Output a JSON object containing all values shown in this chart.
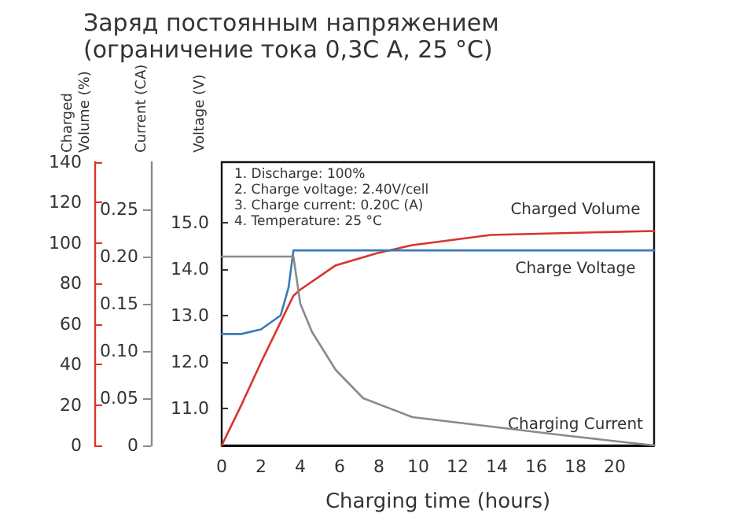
{
  "chart_data": {
    "type": "line",
    "title": "Заряд постоянным напряжением",
    "subtitle": "(ограничение тока 0,3C A, 25 °C)",
    "xlabel": "Charging time (hours)",
    "ylabel": "Voltage (V)",
    "y2label": "Current (CA)",
    "y3label": "Charged Volume (%)",
    "annotations": [
      "1. Discharge: 100%",
      "2. Charge voltage: 2.40V/cell",
      "3. Charge current: 0.20C (A)",
      "4. Temperature: 25 °C"
    ],
    "xlim": [
      0,
      22
    ],
    "xticks": [
      0,
      2,
      4,
      6,
      8,
      10,
      12,
      14,
      16,
      18,
      20
    ],
    "ylim": [
      10.2,
      16.3
    ],
    "yticks": [
      {
        "value": 11,
        "label": "11.0"
      },
      {
        "value": 12,
        "label": "12.0"
      },
      {
        "value": 13,
        "label": "13.0"
      },
      {
        "value": 14,
        "label": "14.0"
      },
      {
        "value": 15,
        "label": "15.0"
      }
    ],
    "y2lim": [
      0,
      0.3
    ],
    "y2ticks": [
      0,
      0.05,
      {
        "value": 0.1,
        "label": "0.10"
      },
      0.15,
      {
        "value": 0.2,
        "label": "0.20"
      },
      0.25
    ],
    "y3lim": [
      0,
      140
    ],
    "y3ticks": [
      0,
      20,
      40,
      60,
      80,
      100,
      120,
      140
    ],
    "grid": false,
    "legend": false,
    "marker": "none",
    "line_style": "solid",
    "series": [
      {
        "name": "Charged Volume",
        "color": "#d8342c",
        "axis": "y3",
        "x": [
          0,
          1,
          2,
          3,
          3.65,
          4,
          5.8,
          7.9,
          9.7,
          13.7,
          17.7,
          22
        ],
        "values": [
          0,
          20,
          41,
          61,
          74,
          77,
          89,
          95,
          99,
          104,
          105,
          106
        ]
      },
      {
        "name": "Charge Voltage",
        "color": "#3a7ab8",
        "x": [
          0,
          1,
          2,
          3,
          3.4,
          3.65,
          22
        ],
        "values": [
          12.6,
          12.6,
          12.7,
          13.0,
          13.6,
          14.4,
          14.4
        ]
      },
      {
        "name": "Charging Current",
        "color": "#8a8a8a",
        "axis": "y2",
        "x": [
          0,
          3.65,
          4,
          4.6,
          5.8,
          7.2,
          9.7,
          13.7,
          17.7,
          22
        ],
        "values": [
          0.2,
          0.2,
          0.15,
          0.12,
          0.08,
          0.05,
          0.03,
          0.02,
          0.01,
          0.0
        ]
      }
    ]
  }
}
